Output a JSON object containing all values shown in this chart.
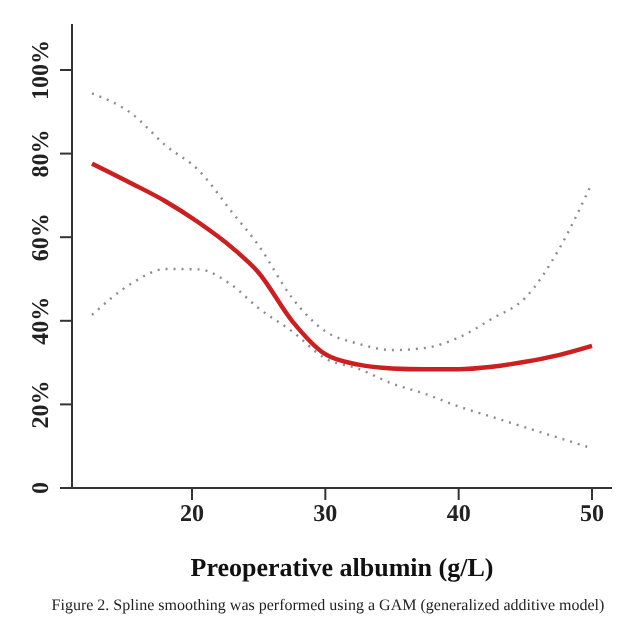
{
  "chart_data": {
    "type": "line",
    "xlabel": "Preoperative albumin (g/L)",
    "annotations": [
      "Figure 2. Spline smoothing was performed using a GAM (generalized additive model)"
    ],
    "x": [
      12.5,
      15.5,
      18,
      20.5,
      23,
      25,
      27.5,
      30,
      32.5,
      35,
      37.5,
      40,
      42.5,
      45,
      47.5,
      50
    ],
    "series": [
      {
        "color": "#8a8a9a",
        "line_style": "dotted",
        "values": [
          94.4,
          89.5,
          82,
          76,
          66,
          58,
          45.5,
          37.5,
          34.5,
          33,
          33.5,
          36,
          40.5,
          45.5,
          57,
          73
        ]
      },
      {
        "color": "#8a8a9a",
        "line_style": "dotted",
        "values": [
          41.4,
          49,
          52.4,
          52.3,
          48.5,
          43,
          37.5,
          31,
          28.5,
          25,
          22.5,
          19.5,
          17,
          14.5,
          12,
          9.5
        ]
      },
      {
        "color": "#cc1f1f",
        "values": [
          77.6,
          72.8,
          68.6,
          63.5,
          57.5,
          51.5,
          40,
          32,
          29.5,
          28.6,
          28.4,
          28.4,
          29,
          30.2,
          31.8,
          34
        ]
      }
    ],
    "xlim": [
      11,
      51.5
    ],
    "xticks": [
      20,
      30,
      40,
      50
    ],
    "ylim": [
      0,
      111
    ],
    "yticks": [
      0,
      {
        "value": 20,
        "label": "20%"
      },
      {
        "value": 40,
        "label": "40%"
      },
      {
        "value": 60,
        "label": "60%"
      },
      {
        "value": 80,
        "label": "80%"
      },
      {
        "value": 100,
        "label": "100%"
      }
    ],
    "grid": false,
    "legend": false,
    "marker": "none",
    "line_style": "solid"
  }
}
